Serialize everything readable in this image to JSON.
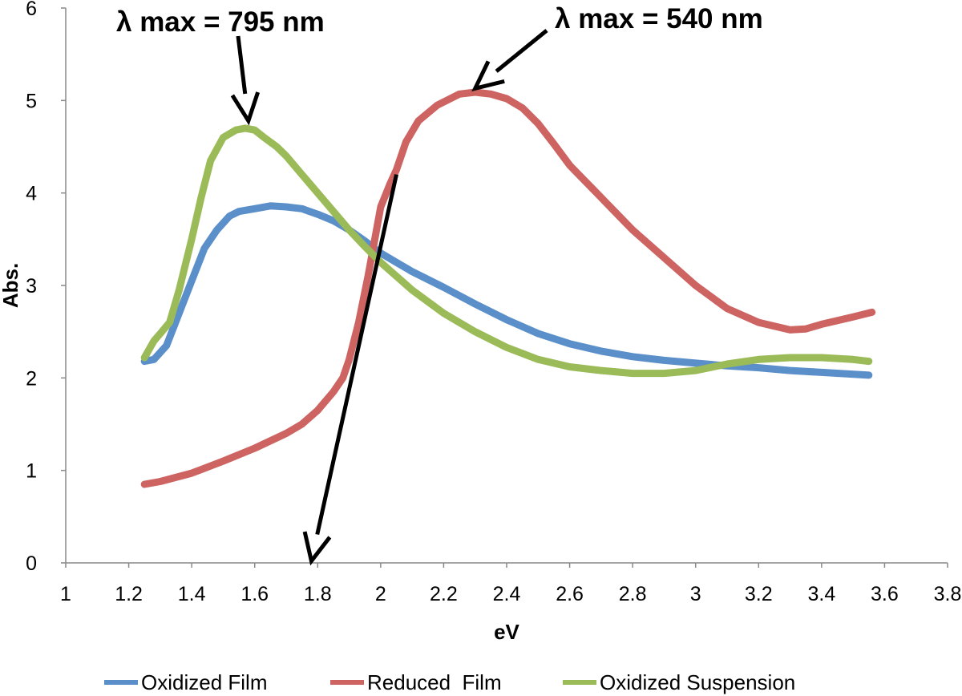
{
  "chart_data": {
    "type": "line",
    "title": "",
    "xlabel": "eV",
    "ylabel": "Abs.",
    "xlim": [
      1,
      3.8
    ],
    "ylim": [
      0,
      6
    ],
    "xticks": [
      1,
      1.2,
      1.4,
      1.6,
      1.8,
      2,
      2.2,
      2.4,
      2.6,
      2.8,
      3,
      3.2,
      3.4,
      3.6,
      3.8
    ],
    "xtick_labels": [
      "1",
      "1.2",
      "1.4",
      "1.6",
      "1.8",
      "2",
      "2.2",
      "2.4",
      "2.6",
      "2.8",
      "3",
      "3.2",
      "3.4",
      "3.6",
      "3.8"
    ],
    "yticks": [
      0,
      1,
      2,
      3,
      4,
      5,
      6
    ],
    "ytick_labels": [
      "0",
      "1",
      "2",
      "3",
      "4",
      "5",
      "6"
    ],
    "grid": false,
    "legend_position": "bottom",
    "series": [
      {
        "name": "Oxidized Film",
        "color": "#5b8fc9",
        "x": [
          1.25,
          1.28,
          1.32,
          1.36,
          1.4,
          1.44,
          1.48,
          1.52,
          1.55,
          1.6,
          1.65,
          1.7,
          1.75,
          1.8,
          1.85,
          1.9,
          1.95,
          2.0,
          2.05,
          2.1,
          2.2,
          2.3,
          2.4,
          2.5,
          2.6,
          2.7,
          2.8,
          2.9,
          3.0,
          3.1,
          3.2,
          3.3,
          3.4,
          3.55
        ],
        "y": [
          2.18,
          2.2,
          2.35,
          2.7,
          3.05,
          3.4,
          3.6,
          3.75,
          3.8,
          3.83,
          3.86,
          3.85,
          3.83,
          3.77,
          3.7,
          3.6,
          3.48,
          3.35,
          3.25,
          3.15,
          2.98,
          2.8,
          2.63,
          2.48,
          2.37,
          2.29,
          2.23,
          2.19,
          2.16,
          2.13,
          2.11,
          2.08,
          2.06,
          2.03
        ]
      },
      {
        "name": "Reduced  Film",
        "color": "#cd6462",
        "x": [
          1.25,
          1.3,
          1.4,
          1.5,
          1.6,
          1.7,
          1.75,
          1.8,
          1.85,
          1.88,
          1.9,
          1.93,
          1.96,
          2.0,
          2.03,
          2.05,
          2.08,
          2.12,
          2.18,
          2.25,
          2.3,
          2.35,
          2.4,
          2.45,
          2.5,
          2.55,
          2.6,
          2.7,
          2.8,
          2.9,
          3.0,
          3.1,
          3.2,
          3.3,
          3.35,
          3.4,
          3.5,
          3.56
        ],
        "y": [
          0.85,
          0.88,
          0.97,
          1.1,
          1.24,
          1.4,
          1.5,
          1.65,
          1.85,
          2.0,
          2.2,
          2.6,
          3.1,
          3.85,
          4.1,
          4.25,
          4.55,
          4.78,
          4.95,
          5.07,
          5.09,
          5.07,
          5.02,
          4.92,
          4.75,
          4.53,
          4.3,
          3.95,
          3.6,
          3.3,
          3.0,
          2.75,
          2.6,
          2.52,
          2.53,
          2.58,
          2.66,
          2.71
        ]
      },
      {
        "name": "Oxidized Suspension",
        "color": "#9bbb59",
        "x": [
          1.25,
          1.28,
          1.3,
          1.33,
          1.36,
          1.4,
          1.43,
          1.46,
          1.5,
          1.54,
          1.57,
          1.6,
          1.63,
          1.67,
          1.7,
          1.75,
          1.8,
          1.85,
          1.9,
          1.95,
          2.0,
          2.05,
          2.1,
          2.2,
          2.3,
          2.4,
          2.5,
          2.6,
          2.7,
          2.8,
          2.9,
          3.0,
          3.1,
          3.2,
          3.3,
          3.4,
          3.5,
          3.55
        ],
        "y": [
          2.22,
          2.4,
          2.48,
          2.6,
          2.95,
          3.5,
          3.95,
          4.35,
          4.6,
          4.68,
          4.7,
          4.68,
          4.6,
          4.5,
          4.4,
          4.2,
          4.0,
          3.8,
          3.6,
          3.42,
          3.25,
          3.1,
          2.95,
          2.7,
          2.5,
          2.33,
          2.2,
          2.12,
          2.08,
          2.05,
          2.05,
          2.08,
          2.15,
          2.2,
          2.22,
          2.22,
          2.2,
          2.18
        ]
      }
    ],
    "annotations": [
      {
        "text": "λ max = 795 nm",
        "arrow_points_to": {
          "x": 1.58,
          "y": 4.78
        }
      },
      {
        "text": "λ max = 540 nm",
        "arrow_points_to": {
          "x": 2.3,
          "y": 5.13
        }
      },
      {
        "text": "",
        "arrow_from": {
          "x": 2.05,
          "y": 4.2
        },
        "arrow_points_to": {
          "x": 1.78,
          "y": 0.02
        }
      }
    ]
  }
}
